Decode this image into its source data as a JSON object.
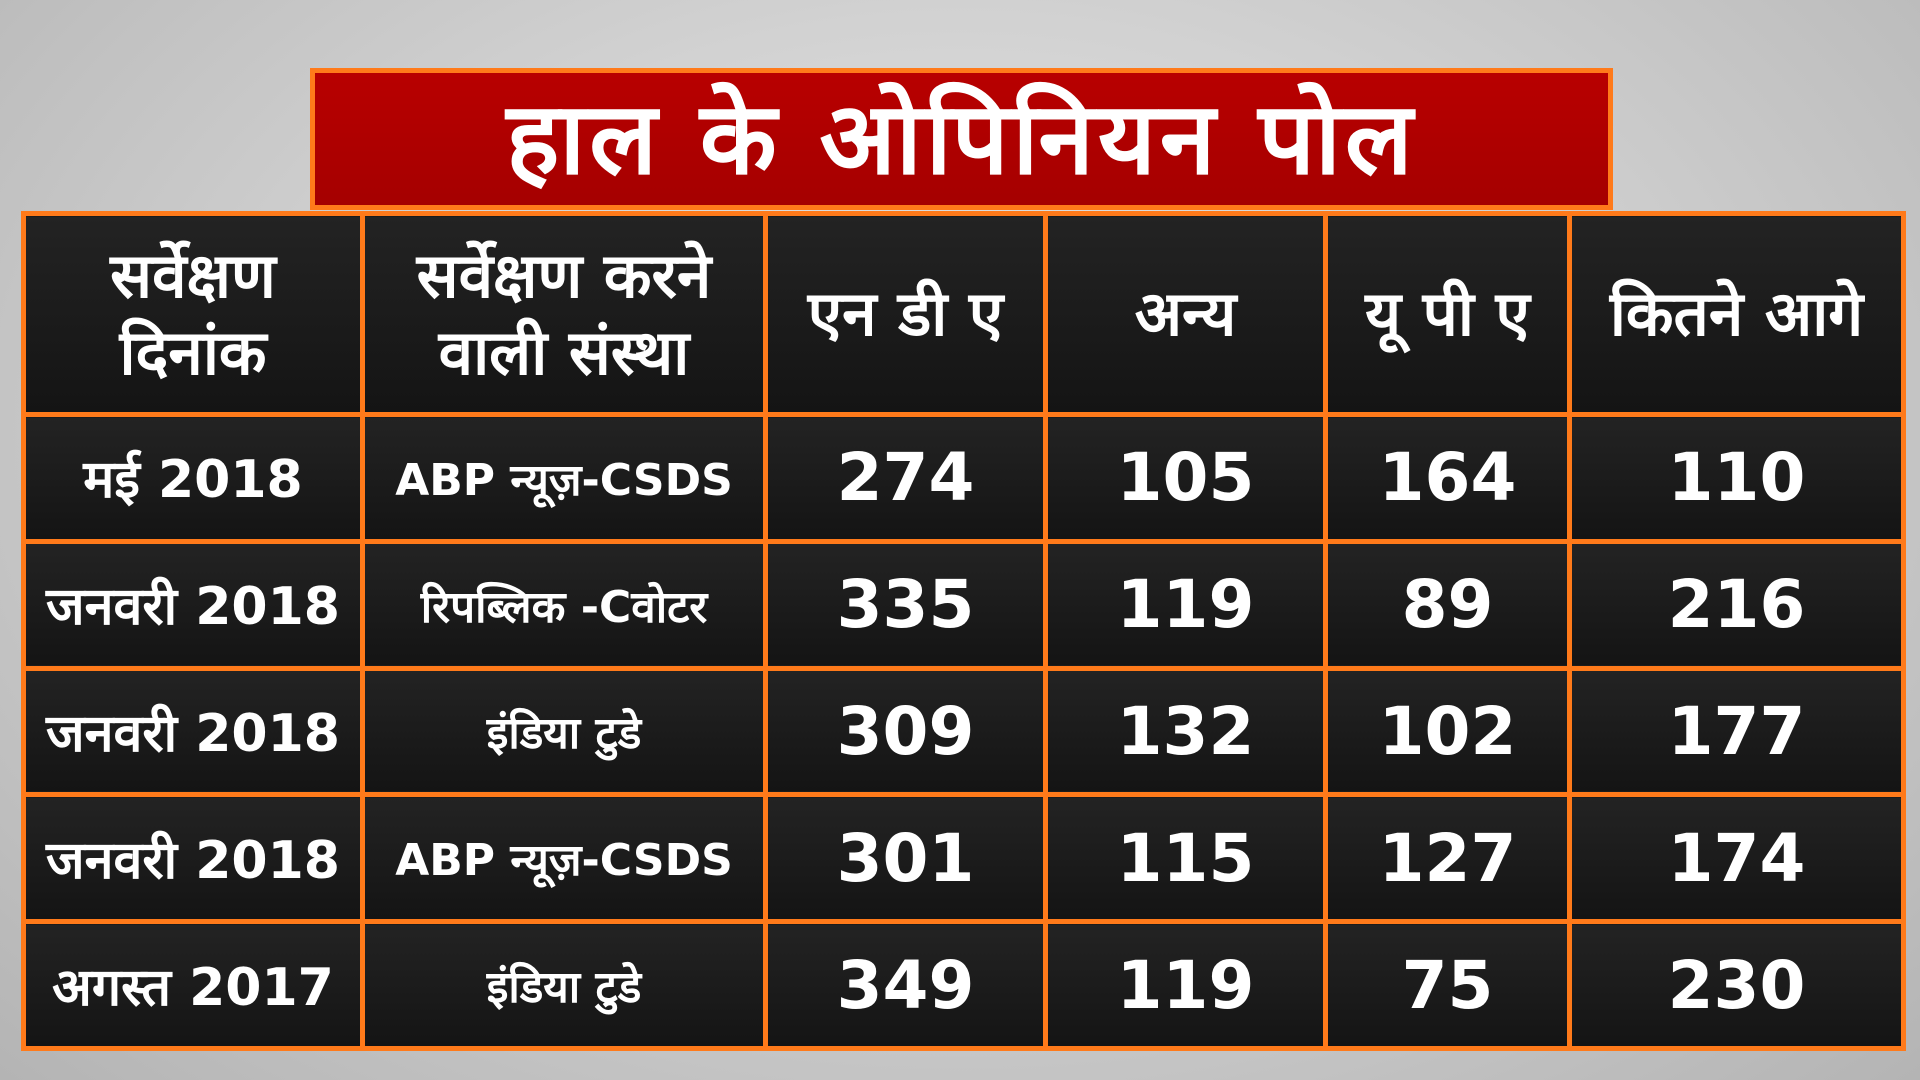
{
  "title": "हाल के ओपिनियन पोल",
  "headers": [
    {
      "line1": "सर्वेक्षण",
      "line2": "दिनांक"
    },
    {
      "line1": "सर्वेक्षण करने",
      "line2": "वाली संस्था"
    },
    {
      "line1": "एन डी ए",
      "line2": ""
    },
    {
      "line1": "अन्य",
      "line2": ""
    },
    {
      "line1": "यू पी ए",
      "line2": ""
    },
    {
      "line1": "कितने आगे",
      "line2": ""
    }
  ],
  "rows": [
    {
      "date": "मई 2018",
      "org": "ABP न्यूज़-CSDS",
      "nda": "274",
      "others": "105",
      "upa": "164",
      "lead": "110"
    },
    {
      "date": "जनवरी 2018",
      "org": "रिपब्लिक -Cवोटर",
      "nda": "335",
      "others": "119",
      "upa": "89",
      "lead": "216"
    },
    {
      "date": "जनवरी 2018",
      "org": "इंडिया टुडे",
      "nda": "309",
      "others": "132",
      "upa": "102",
      "lead": "177"
    },
    {
      "date": "जनवरी 2018",
      "org": "ABP न्यूज़-CSDS",
      "nda": "301",
      "others": "115",
      "upa": "127",
      "lead": "174"
    },
    {
      "date": "अगस्त 2017",
      "org": "इंडिया टुडे",
      "nda": "349",
      "others": "119",
      "upa": "75",
      "lead": "230"
    }
  ],
  "colors": {
    "title_background": "#b00000",
    "border": "#ff7a1a",
    "cell_background": "#1b1b1b",
    "text": "#ffffff"
  }
}
